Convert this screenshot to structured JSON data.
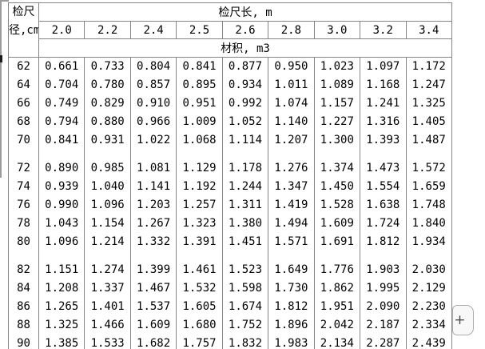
{
  "colors": {
    "table_border": "#848484",
    "text": "#000000",
    "background": "#ffffff",
    "button_bg": "#f8f8f8",
    "button_border": "#aeaeae"
  },
  "table": {
    "corner_header": {
      "line1": "检尺",
      "line2": "径,cm"
    },
    "length_header": "检尺长, m",
    "volume_header": "材积, m3",
    "lengths": [
      "2.0",
      "2.2",
      "2.4",
      "2.5",
      "2.6",
      "2.8",
      "3.0",
      "3.2",
      "3.4"
    ],
    "groups": [
      {
        "rows": [
          {
            "diameter": "62",
            "values": [
              "0.661",
              "0.733",
              "0.804",
              "0.841",
              "0.877",
              "0.950",
              "1.023",
              "1.097",
              "1.172"
            ]
          },
          {
            "diameter": "64",
            "values": [
              "0.704",
              "0.780",
              "0.857",
              "0.895",
              "0.934",
              "1.011",
              "1.089",
              "1.168",
              "1.247"
            ]
          },
          {
            "diameter": "66",
            "values": [
              "0.749",
              "0.829",
              "0.910",
              "0.951",
              "0.992",
              "1.074",
              "1.157",
              "1.241",
              "1.325"
            ]
          },
          {
            "diameter": "68",
            "values": [
              "0.794",
              "0.880",
              "0.966",
              "1.009",
              "1.052",
              "1.140",
              "1.227",
              "1.316",
              "1.405"
            ]
          },
          {
            "diameter": "70",
            "values": [
              "0.841",
              "0.931",
              "1.022",
              "1.068",
              "1.114",
              "1.207",
              "1.300",
              "1.393",
              "1.487"
            ]
          }
        ]
      },
      {
        "rows": [
          {
            "diameter": "72",
            "values": [
              "0.890",
              "0.985",
              "1.081",
              "1.129",
              "1.178",
              "1.276",
              "1.374",
              "1.473",
              "1.572"
            ]
          },
          {
            "diameter": "74",
            "values": [
              "0.939",
              "1.040",
              "1.141",
              "1.192",
              "1.244",
              "1.347",
              "1.450",
              "1.554",
              "1.659"
            ]
          },
          {
            "diameter": "76",
            "values": [
              "0.990",
              "1.096",
              "1.203",
              "1.257",
              "1.311",
              "1.419",
              "1.528",
              "1.638",
              "1.748"
            ]
          },
          {
            "diameter": "78",
            "values": [
              "1.043",
              "1.154",
              "1.267",
              "1.323",
              "1.380",
              "1.494",
              "1.609",
              "1.724",
              "1.840"
            ]
          },
          {
            "diameter": "80",
            "values": [
              "1.096",
              "1.214",
              "1.332",
              "1.391",
              "1.451",
              "1.571",
              "1.691",
              "1.812",
              "1.934"
            ]
          }
        ]
      },
      {
        "rows": [
          {
            "diameter": "82",
            "values": [
              "1.151",
              "1.274",
              "1.399",
              "1.461",
              "1.523",
              "1.649",
              "1.776",
              "1.903",
              "2.030"
            ]
          },
          {
            "diameter": "84",
            "values": [
              "1.208",
              "1.337",
              "1.467",
              "1.532",
              "1.598",
              "1.730",
              "1.862",
              "1.995",
              "2.129"
            ]
          },
          {
            "diameter": "86",
            "values": [
              "1.265",
              "1.401",
              "1.537",
              "1.605",
              "1.674",
              "1.812",
              "1.951",
              "2.090",
              "2.230"
            ]
          },
          {
            "diameter": "88",
            "values": [
              "1.325",
              "1.466",
              "1.609",
              "1.680",
              "1.752",
              "1.896",
              "2.042",
              "2.187",
              "2.334"
            ]
          },
          {
            "diameter": "90",
            "values": [
              "1.385",
              "1.533",
              "1.682",
              "1.757",
              "1.832",
              "1.983",
              "2.134",
              "2.287",
              "2.439"
            ]
          }
        ]
      }
    ]
  },
  "add_button": {
    "label": "+"
  }
}
